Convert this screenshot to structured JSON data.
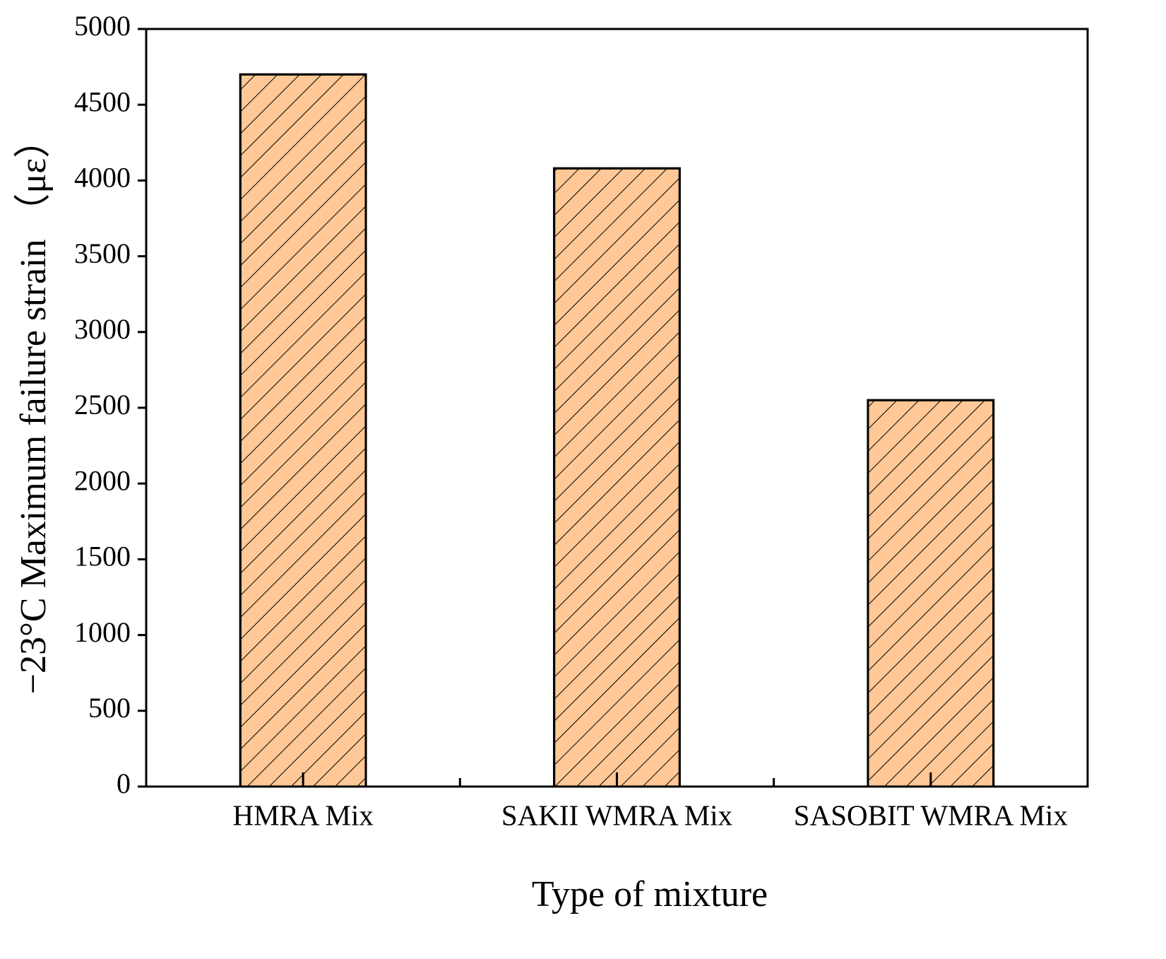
{
  "chart_data": {
    "type": "bar",
    "x_label": "Type of mixture",
    "y_label": "−23°C Maximum failure strain （με）",
    "categories": [
      "HMRA Mix",
      "SAKII WMRA Mix",
      "SASOBIT WMRA Mix"
    ],
    "values": [
      4700,
      4080,
      2550
    ],
    "color": "#ffc896",
    "hatch": true,
    "ylim": [
      0,
      5000
    ],
    "yticks": [
      0,
      500,
      1000,
      1500,
      2000,
      2500,
      3000,
      3500,
      4000,
      4500,
      5000
    ],
    "grid": false
  }
}
